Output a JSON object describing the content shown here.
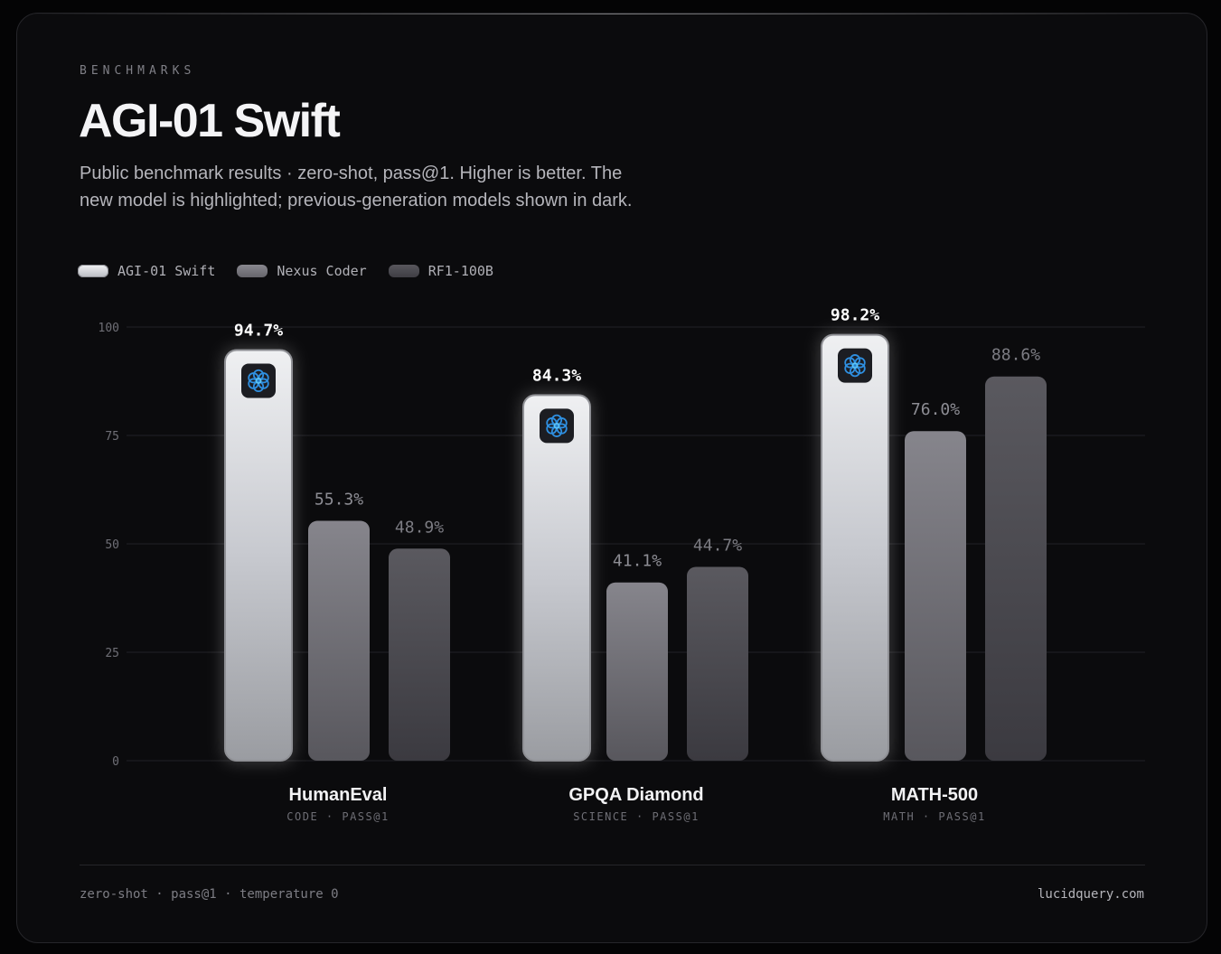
{
  "header": {
    "eyebrow": "BENCHMARKS",
    "title": "AGI-01 Swift",
    "subtitle": "Public benchmark results · zero-shot, pass@1. Higher is better. The new model is highlighted; previous-generation models shown in dark."
  },
  "legend": [
    {
      "label": "AGI-01 Swift",
      "color": "#dcdde1"
    },
    {
      "label": "Nexus Coder",
      "color": "#77767d"
    },
    {
      "label": "RF1-100B",
      "color": "#4a494f"
    }
  ],
  "chart_data": {
    "type": "bar",
    "categories": [
      "HumanEval",
      "GPQA Diamond",
      "MATH-500"
    ],
    "category_sublabels": [
      "CODE · PASS@1",
      "SCIENCE · PASS@1",
      "MATH · PASS@1"
    ],
    "series": [
      {
        "name": "AGI-01 Swift",
        "values": [
          94.7,
          84.3,
          98.2
        ],
        "value_labels": [
          "94.7%",
          "84.3%",
          "98.2%"
        ],
        "highlight": true,
        "color": "#dcdde1"
      },
      {
        "name": "Nexus Coder",
        "values": [
          55.3,
          41.1,
          76.0
        ],
        "value_labels": [
          "55.3%",
          "41.1%",
          "76.0%"
        ],
        "color": "#77767d"
      },
      {
        "name": "RF1-100B",
        "values": [
          48.9,
          44.7,
          88.6
        ],
        "value_labels": [
          "48.9%",
          "44.7%",
          "88.6%"
        ],
        "color": "#4a494f"
      }
    ],
    "yticks": [
      0,
      25,
      50,
      75,
      100
    ],
    "ylim": [
      0,
      100
    ],
    "grid": true,
    "highlight_icon": "hexagon-flower-icon",
    "accent_color": "#2f8fe0"
  },
  "footer": {
    "left": "zero-shot · pass@1 · temperature 0",
    "right": "lucidquery.com"
  }
}
